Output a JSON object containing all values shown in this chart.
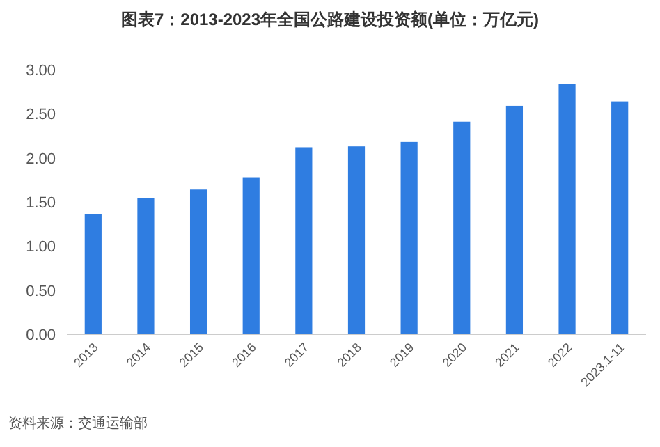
{
  "chart_data": {
    "type": "bar",
    "title": "图表7：2013-2023年全国公路建设投资额(单位：万亿元)",
    "categories": [
      "2013",
      "2014",
      "2015",
      "2016",
      "2017",
      "2018",
      "2019",
      "2020",
      "2021",
      "2022",
      "2023.1-11"
    ],
    "values": [
      1.36,
      1.54,
      1.64,
      1.78,
      2.12,
      2.13,
      2.18,
      2.41,
      2.59,
      2.84,
      2.64
    ],
    "color": "#2f7de1",
    "ylim": [
      0,
      3
    ],
    "yticks": [
      {
        "value": 0,
        "label": "0.00"
      },
      {
        "value": 0.5,
        "label": "0.50"
      },
      {
        "value": 1,
        "label": "1.00"
      },
      {
        "value": 1.5,
        "label": "1.50"
      },
      {
        "value": 2,
        "label": "2.00"
      },
      {
        "value": 2.5,
        "label": "2.50"
      },
      {
        "value": 3,
        "label": "3.00"
      }
    ],
    "grid": false,
    "annotations": [
      "资料来源：交通运输部"
    ]
  }
}
